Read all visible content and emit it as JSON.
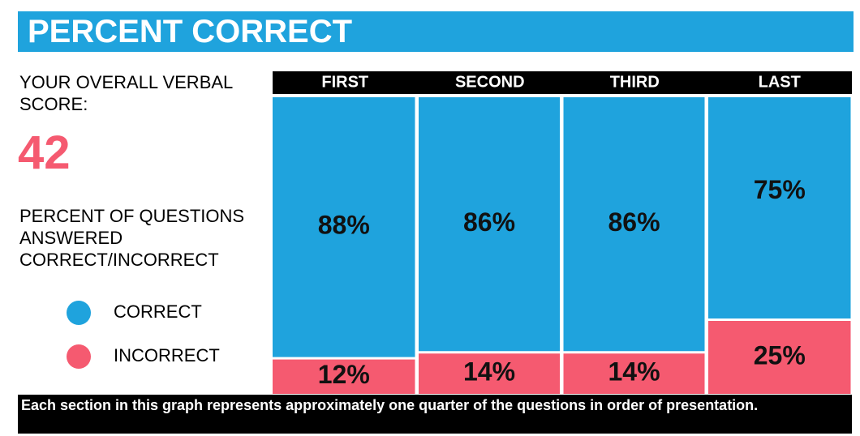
{
  "chart_data": {
    "type": "bar",
    "stacked": true,
    "title": "PERCENT CORRECT",
    "categories": [
      "FIRST",
      "SECOND",
      "THIRD",
      "LAST"
    ],
    "series": [
      {
        "name": "CORRECT",
        "color": "#1fa3dd",
        "values": [
          88,
          86,
          86,
          75
        ],
        "value_labels": [
          "88%",
          "86%",
          "86%",
          "75%"
        ]
      },
      {
        "name": "INCORRECT",
        "color": "#f55a70",
        "values": [
          12,
          14,
          14,
          25
        ],
        "value_labels": [
          "12%",
          "14%",
          "14%",
          "25%"
        ]
      }
    ],
    "ylim": [
      0,
      100
    ]
  },
  "score_label": "YOUR OVERALL VERBAL SCORE:",
  "score": 42,
  "description": "PERCENT OF QUESTIONS ANSWERED CORRECT/INCORRECT",
  "footnote": "Each section in this graph represents approximately one quarter of the questions in order of presentation."
}
